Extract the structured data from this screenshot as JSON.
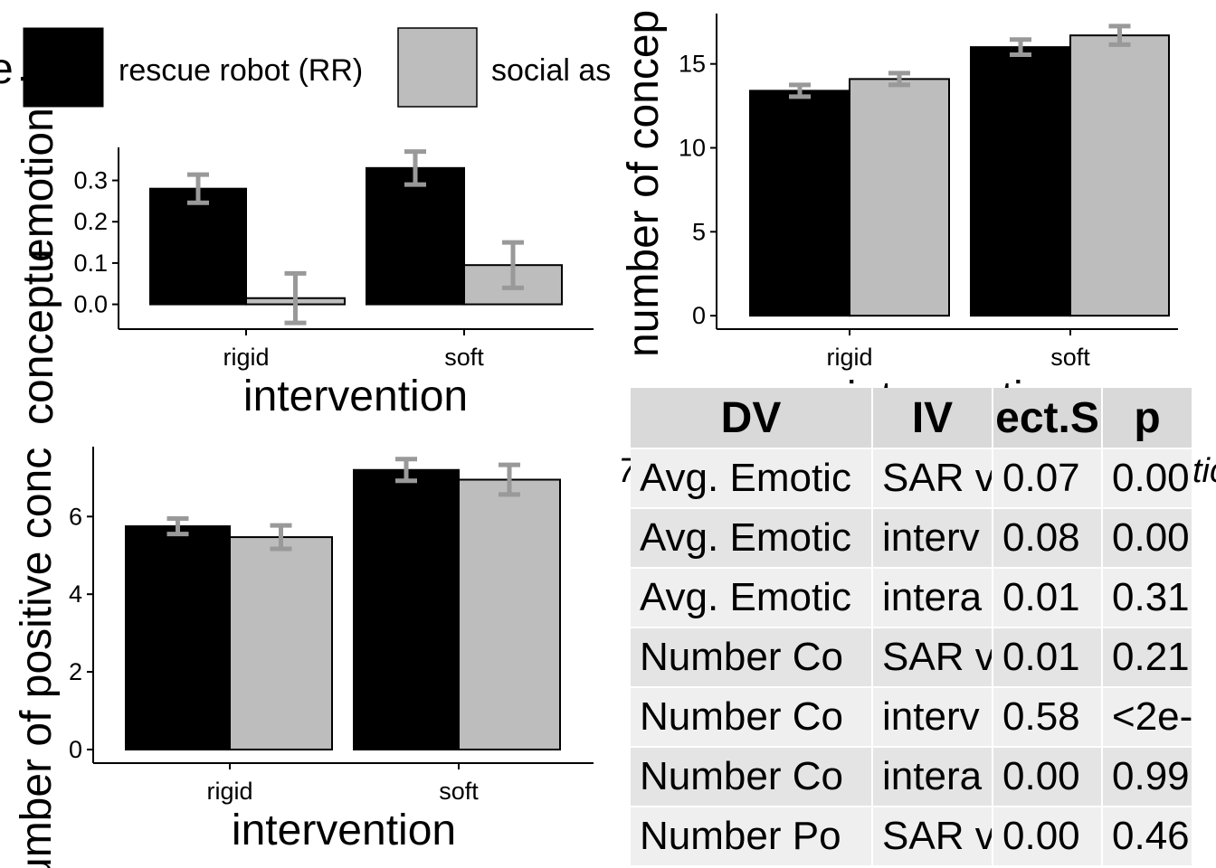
{
  "chart_data": [
    {
      "type": "bar",
      "panel": "top-left",
      "categories": [
        "rigid",
        "soft"
      ],
      "series": [
        {
          "name": "rescue robot (RR)",
          "values": [
            0.28,
            0.33
          ],
          "error": [
            0.034,
            0.04
          ],
          "color": "#000000"
        },
        {
          "name": "social assistive robot (SAR)",
          "values": [
            0.015,
            0.095
          ],
          "error": [
            0.06,
            0.055
          ],
          "color": "#bdbdbd"
        }
      ],
      "xlabel": "intervention",
      "ylabel": "emotional e",
      "ylim": [
        -0.06,
        0.38
      ],
      "yticks": [
        "0.0",
        "0.1",
        "0.2",
        "0.3"
      ],
      "legend": {
        "title": "e",
        "position": "top",
        "entries": [
          "rescue robot (RR)",
          "social as"
        ]
      }
    },
    {
      "type": "bar",
      "panel": "top-right",
      "categories": [
        "rigid",
        "soft"
      ],
      "series": [
        {
          "name": "rescue robot (RR)",
          "values": [
            13.4,
            16.0
          ],
          "error": [
            0.35,
            0.45
          ],
          "color": "#000000"
        },
        {
          "name": "social assistive robot (SAR)",
          "values": [
            14.1,
            16.7
          ],
          "error": [
            0.35,
            0.55
          ],
          "color": "#bdbdbd"
        }
      ],
      "xlabel": "intervention",
      "ylabel": "number of concep",
      "ylim": [
        -0.8,
        18
      ],
      "yticks": [
        "0",
        "5",
        "10",
        "15"
      ],
      "legend": {
        "position": "none"
      }
    },
    {
      "type": "bar",
      "panel": "bottom-left",
      "categories": [
        "rigid",
        "soft"
      ],
      "series": [
        {
          "name": "rescue robot (RR)",
          "values": [
            5.75,
            7.2
          ],
          "error": [
            0.2,
            0.28
          ],
          "color": "#000000"
        },
        {
          "name": "social assistive robot (SAR)",
          "values": [
            5.47,
            6.95
          ],
          "error": [
            0.3,
            0.38
          ],
          "color": "#bdbdbd"
        }
      ],
      "xlabel": "intervention",
      "ylabel": "umber of positive conc",
      "ylim": [
        -0.35,
        7.8
      ],
      "yticks": [
        "0",
        "2",
        "4",
        "6"
      ],
      "legend": {
        "position": "none"
      }
    }
  ],
  "overlap_label": "conceptu",
  "stray_labels": {
    "left_mark": "7",
    "right_mark": "tic"
  },
  "stats_table": {
    "headers": [
      "DV",
      "IV",
      "ect.S",
      "p"
    ],
    "rows": [
      [
        "Avg. Emotic",
        "SAR v",
        "0.07",
        "0.00"
      ],
      [
        "Avg. Emotic",
        "interv",
        "0.08",
        "0.00"
      ],
      [
        "Avg. Emotic",
        "intera",
        "0.01",
        "0.31"
      ],
      [
        "Number Co",
        "SAR v",
        "0.01",
        "0.21"
      ],
      [
        "Number Co",
        "interv",
        "0.58",
        "<2e-"
      ],
      [
        "Number Co",
        "intera",
        "0.00",
        "0.99"
      ],
      [
        "Number Po",
        "SAR v",
        "0.00",
        "0.46"
      ]
    ]
  },
  "colors": {
    "rr": "#000000",
    "sar": "#bdbdbd",
    "errorbar": "#999999",
    "axis": "#000000"
  }
}
